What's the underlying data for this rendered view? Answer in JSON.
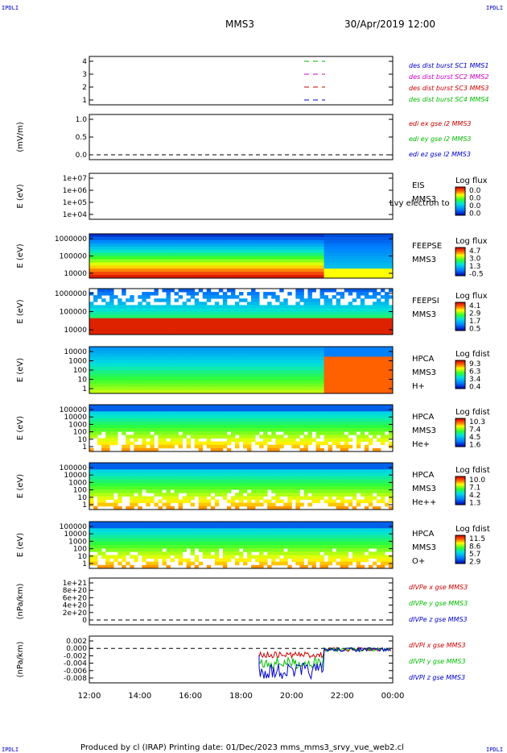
{
  "corner_tag": "IPDLI",
  "header": {
    "spacecraft": "MMS3",
    "datetime": "30/Apr/2019 12:00"
  },
  "footer": "Produced by cl (IRAP)   Printing date: 01/Dec/2023   mms_mms3_srvy_vue_web2.cl",
  "time_axis": {
    "ticks": [
      "12:00",
      "14:00",
      "16:00",
      "18:00",
      "20:00",
      "22:00",
      "00:00"
    ]
  },
  "colors": {
    "dashed_zero": "#000000"
  },
  "chart_data": [
    {
      "type": "line",
      "panel": "burst",
      "ylabel": "",
      "yticks": [
        "4",
        "3",
        "2",
        "1"
      ],
      "legend": [
        {
          "name": "des dist burst SC1 MMS1",
          "color": "#0000cc"
        },
        {
          "name": "des dist burst SC2 MMS2",
          "color": "#cc00cc"
        },
        {
          "name": "des dist burst SC3 MMS3",
          "color": "#cc0000"
        },
        {
          "name": "des dist burst SC4 MMS4",
          "color": "#00bb00"
        }
      ]
    },
    {
      "type": "line",
      "panel": "edi",
      "ylabel": "(mV/m)",
      "yticks": [
        "1.0",
        "0.5",
        "0.0"
      ],
      "legend": [
        {
          "name": "edi ex gse l2 MMS3",
          "color": "#cc0000"
        },
        {
          "name": "edi ey gse l2 MMS3",
          "color": "#00bb00"
        },
        {
          "name": "edi ez gse l2 MMS3",
          "color": "#0000cc"
        }
      ]
    },
    {
      "type": "heatmap",
      "panel": "eis",
      "ylabel": "E (eV)",
      "yticks": [
        "1e+07",
        "1e+06",
        "1e+05",
        "1e+04"
      ],
      "label_lines": [
        "EIS",
        "MMS3"
      ],
      "overlay_text": "Lvy electron to",
      "cbar_title": "Log flux",
      "cbar_ticks": [
        "0.0",
        "0.0",
        "0.0",
        "0.0"
      ]
    },
    {
      "type": "heatmap",
      "panel": "feeps_e",
      "ylabel": "E (eV)",
      "yticks": [
        "1000000",
        "100000",
        "10000"
      ],
      "label_lines": [
        "FEEPSE",
        "MMS3"
      ],
      "cbar_title": "Log flux",
      "cbar_ticks": [
        "4.7",
        "3.0",
        "1.3",
        "-0.5"
      ]
    },
    {
      "type": "heatmap",
      "panel": "feeps_i",
      "ylabel": "E (eV)",
      "yticks": [
        "1000000",
        "100000",
        "10000"
      ],
      "label_lines": [
        "FEEPSI",
        "MMS3"
      ],
      "cbar_title": "Log flux",
      "cbar_ticks": [
        "4.1",
        "2.9",
        "1.7",
        "0.5"
      ]
    },
    {
      "type": "heatmap",
      "panel": "hpca_h",
      "ylabel": "E (eV)",
      "yticks": [
        "10000",
        "1000",
        "100",
        "10",
        "1"
      ],
      "label_lines": [
        "HPCA",
        "MMS3",
        "H+"
      ],
      "cbar_title": "Log fdist",
      "cbar_ticks": [
        "9.3",
        "6.3",
        "3.4",
        "0.4"
      ]
    },
    {
      "type": "heatmap",
      "panel": "hpca_he",
      "ylabel": "E (eV)",
      "yticks": [
        "100000",
        "10000",
        "1000",
        "100",
        "10",
        "1"
      ],
      "label_lines": [
        "HPCA",
        "MMS3",
        "He+"
      ],
      "cbar_title": "Log fdist",
      "cbar_ticks": [
        "10.3",
        "7.4",
        "4.5",
        "1.6"
      ]
    },
    {
      "type": "heatmap",
      "panel": "hpca_hepp",
      "ylabel": "E (eV)",
      "yticks": [
        "100000",
        "10000",
        "1000",
        "100",
        "10",
        "1"
      ],
      "label_lines": [
        "HPCA",
        "MMS3",
        "He++"
      ],
      "cbar_title": "Log fdist",
      "cbar_ticks": [
        "10.0",
        "7.1",
        "4.2",
        "1.3"
      ]
    },
    {
      "type": "heatmap",
      "panel": "hpca_o",
      "ylabel": "E (eV)",
      "yticks": [
        "100000",
        "10000",
        "1000",
        "100",
        "10",
        "1"
      ],
      "label_lines": [
        "HPCA",
        "MMS3",
        "O+"
      ],
      "cbar_title": "Log fdist",
      "cbar_ticks": [
        "11.5",
        "8.6",
        "5.7",
        "2.9"
      ]
    },
    {
      "type": "line",
      "panel": "divpe",
      "ylabel": "(nPa/km)",
      "yticks": [
        "1e+21",
        "8e+20",
        "6e+20",
        "4e+20",
        "2e+20",
        "0"
      ],
      "legend": [
        {
          "name": "dIVPe x gse MMS3",
          "color": "#cc0000"
        },
        {
          "name": "dIVPe y gse MMS3",
          "color": "#00bb00"
        },
        {
          "name": "dIVPe z gse MMS3",
          "color": "#0000cc"
        }
      ]
    },
    {
      "type": "line",
      "panel": "divpi",
      "ylabel": "(nPa/km)",
      "yticks": [
        "0.002",
        "0.000",
        "-0.002",
        "-0.004",
        "-0.006",
        "-0.008"
      ],
      "legend": [
        {
          "name": "dIVPI x gse MMS3",
          "color": "#cc0000"
        },
        {
          "name": "dIVPI y gse MMS3",
          "color": "#00bb00"
        },
        {
          "name": "dIVPI z gse MMS3",
          "color": "#0000cc"
        }
      ]
    }
  ]
}
